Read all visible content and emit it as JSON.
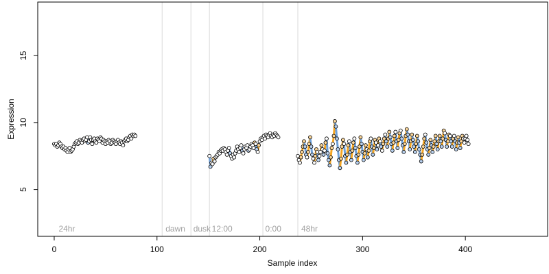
{
  "chart_data": {
    "type": "scatter",
    "xlabel": "Sample index",
    "ylabel": "Expression",
    "xlim": [
      -16,
      480
    ],
    "ylim": [
      1.5,
      19
    ],
    "xticks": [
      0,
      100,
      200,
      300,
      400
    ],
    "yticks": [
      5,
      10,
      15
    ],
    "vlines": [
      105,
      133,
      151,
      203,
      237
    ],
    "annotations": [
      {
        "text": "24hr",
        "x": 3
      },
      {
        "text": "dawn",
        "x": 107
      },
      {
        "text": "dusk",
        "x": 134
      },
      {
        "text": "12:00",
        "x": 152
      },
      {
        "text": "0:00",
        "x": 204
      },
      {
        "text": "48hr",
        "x": 239
      }
    ],
    "colors": {
      "orange": "#f5a623",
      "blue": "#6fa0d8",
      "line": "#8a8a8a",
      "grid": "#d9d9d9"
    },
    "series": [
      {
        "x_start": 0,
        "values": [
          8.4,
          8.3,
          8.4,
          8.2,
          8.3,
          8.5,
          8.4,
          8.2,
          8.1,
          8.2,
          8.0,
          8.1,
          7.9,
          7.8,
          8.0,
          8.1,
          7.8,
          7.9,
          8.0,
          8.2,
          8.4,
          8.5,
          8.6,
          8.4,
          8.5,
          8.7,
          8.6,
          8.5,
          8.7,
          8.8,
          8.6,
          8.7,
          8.9,
          8.5,
          8.6,
          8.9,
          8.7,
          8.4,
          8.7,
          8.8,
          8.6,
          8.5,
          8.8,
          8.7,
          8.6,
          8.9,
          8.8,
          8.5,
          8.7,
          8.6,
          8.4,
          8.6,
          8.5,
          8.7,
          8.6,
          8.4,
          8.5,
          8.7,
          8.6,
          8.5,
          8.4,
          8.6,
          8.7,
          8.5,
          8.4,
          8.6,
          8.5,
          8.3,
          8.6,
          8.7,
          8.8,
          8.6,
          8.7,
          8.9,
          9.0,
          8.8,
          9.1,
          9.0,
          9.1,
          9.0
        ]
      },
      {
        "x_start": 151,
        "values": [
          7.5,
          6.7,
          7.0,
          6.9,
          7.3,
          7.1,
          7.4,
          7.5,
          7.6,
          7.8,
          7.7,
          7.9,
          8.0,
          7.9,
          8.1,
          8.0,
          7.8,
          7.6,
          7.9,
          8.1,
          7.7,
          7.5,
          7.3,
          7.6,
          7.4,
          7.7,
          7.9,
          8.2,
          8.0,
          7.8,
          8.1,
          8.3,
          7.9,
          7.7,
          8.0,
          8.2,
          8.1,
          8.3,
          7.9,
          8.0,
          8.2,
          8.4,
          8.3,
          8.1,
          8.5,
          8.4,
          8.0,
          7.8,
          8.3,
          8.6,
          8.8,
          8.7,
          8.9,
          9.0,
          8.8,
          9.1,
          9.0,
          8.9,
          9.1,
          9.2,
          9.0,
          8.9,
          9.1,
          9.0,
          9.2,
          9.1,
          9.0,
          8.9
        ]
      },
      {
        "x_start": 237,
        "values": [
          7.5,
          7.2,
          7.0,
          7.4,
          7.8,
          8.2,
          8.6,
          8.2,
          7.6,
          7.4,
          7.8,
          8.4,
          8.9,
          8.2,
          7.6,
          7.3,
          7.0,
          7.5,
          8.0,
          7.8,
          7.2,
          7.5,
          7.8,
          8.3,
          8.0,
          7.6,
          7.9,
          8.5,
          8.8,
          7.7,
          7.2,
          6.8,
          7.4,
          8.1,
          8.4,
          9.0,
          10.1,
          9.7,
          8.8,
          8.0,
          7.2,
          6.6,
          7.3,
          8.2,
          8.7,
          8.4,
          7.5,
          7.0,
          7.6,
          8.3,
          8.6,
          7.8,
          7.2,
          7.9,
          8.5,
          8.8,
          8.1,
          7.5,
          7.0,
          7.6,
          8.2,
          8.9,
          8.4,
          7.8,
          7.2,
          7.7,
          8.3,
          8.0,
          7.4,
          7.9,
          8.6,
          8.8,
          8.2,
          7.6,
          8.1,
          8.7,
          8.5,
          8.0,
          8.3,
          8.8,
          8.6,
          8.2,
          7.9,
          8.4,
          8.8,
          9.1,
          8.6,
          8.2,
          8.8,
          9.3,
          8.9,
          8.4,
          7.9,
          8.5,
          9.0,
          9.3,
          8.6,
          8.1,
          8.7,
          9.2,
          9.4,
          8.8,
          8.3,
          7.8,
          8.4,
          9.0,
          9.5,
          9.1,
          8.6,
          8.0,
          8.6,
          9.1,
          8.7,
          8.2,
          7.8,
          8.4,
          9.0,
          8.6,
          8.0,
          7.6,
          7.1,
          7.6,
          8.2,
          8.8,
          9.1,
          8.5,
          8.0,
          7.6,
          8.1,
          8.7,
          8.3,
          7.8,
          8.2,
          8.6,
          9.0,
          8.4,
          8.0,
          8.6,
          9.0,
          8.6,
          8.2,
          8.8,
          9.4,
          9.2,
          8.7,
          8.2,
          8.6,
          9.1,
          9.0,
          8.6,
          8.2,
          8.8,
          9.0,
          8.6,
          8.0,
          8.5,
          8.9,
          8.5,
          8.1,
          8.6,
          9.0,
          8.8,
          8.5,
          8.8,
          9.0,
          8.7,
          8.4
        ]
      }
    ]
  }
}
